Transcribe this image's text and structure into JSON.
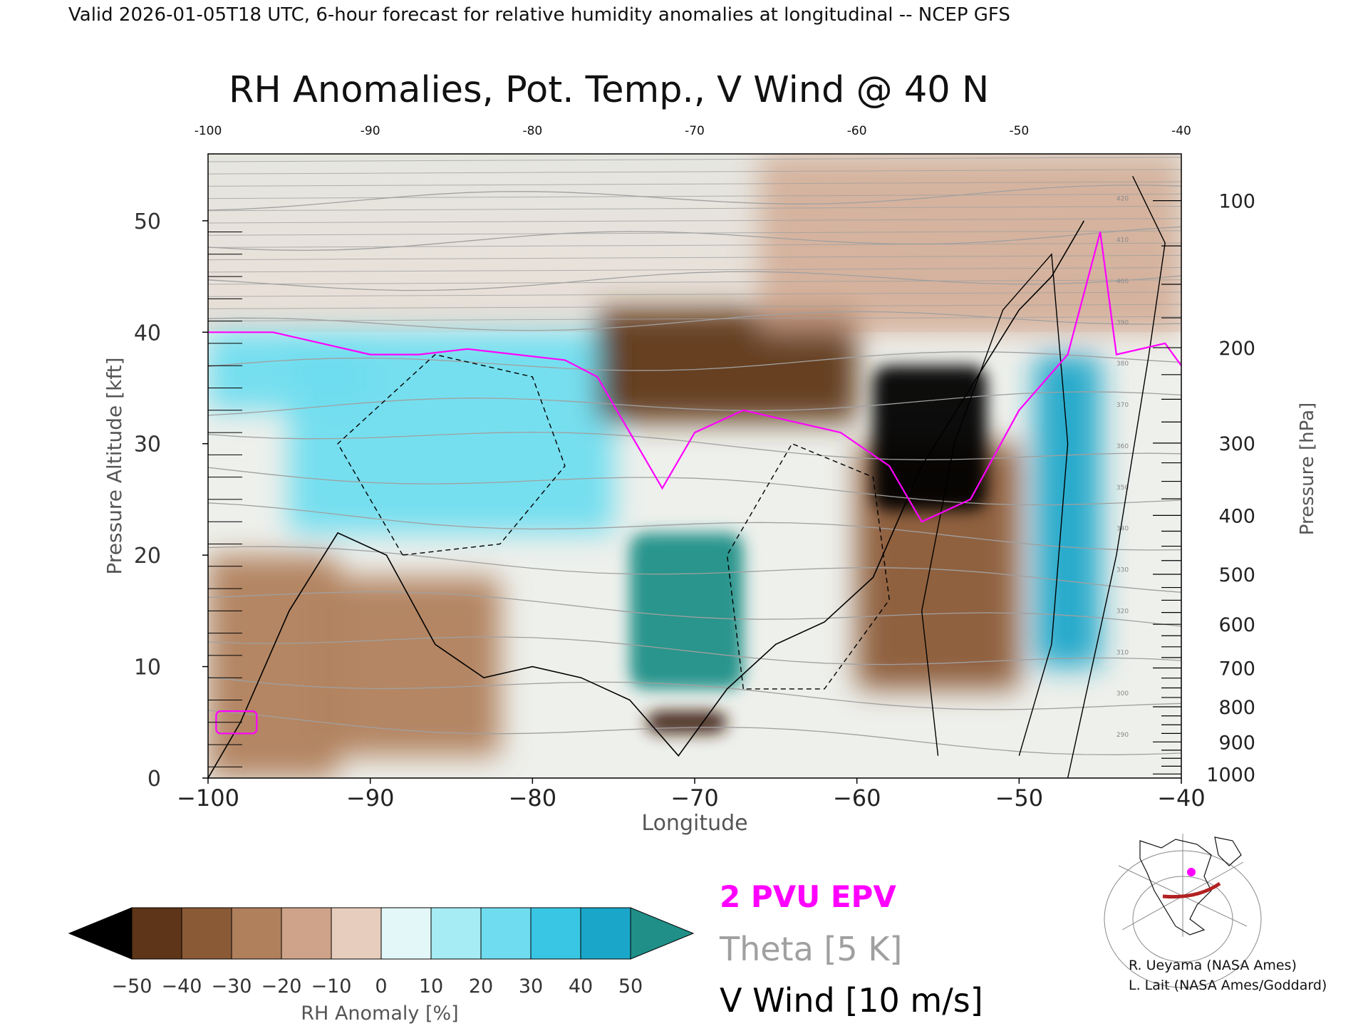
{
  "header": {
    "valid_line": "Valid 2026-01-05T18 UTC, 6-hour forecast for relative humidity anomalies at longitudinal -- NCEP GFS",
    "title": "RH Anomalies, Pot. Temp., V Wind @ 40 N"
  },
  "axes": {
    "x_label": "Longitude",
    "y_left_label": "Pressure Altitude [kft]",
    "y_right_label": "Pressure [hPa]",
    "x_ticks_bottom": [
      "−100",
      "−90",
      "−80",
      "−70",
      "−60",
      "−50",
      "−40"
    ],
    "x_ticks_top": [
      "-100",
      "-90",
      "-80",
      "-70",
      "-60",
      "-50",
      "-40"
    ],
    "y_left_ticks": [
      "0",
      "10",
      "20",
      "30",
      "40",
      "50"
    ],
    "y_right_ticks": [
      "100",
      "200",
      "300",
      "400",
      "500",
      "600",
      "700",
      "800",
      "900",
      "1000"
    ]
  },
  "colorbar": {
    "label": "RH Anomaly [%]",
    "ticks": [
      "−50",
      "−40",
      "−30",
      "−20",
      "−10",
      "0",
      "10",
      "20",
      "30",
      "40",
      "50"
    ],
    "colors": [
      "#3b1f0d",
      "#5e3518",
      "#8a5a36",
      "#b07f5c",
      "#cfa389",
      "#e7cdbd",
      "#e3f7f9",
      "#a5ecf5",
      "#6fddef",
      "#38c6e4",
      "#1aa6c9",
      "#0f86a8"
    ],
    "low_extend_color": "#000000",
    "high_extend_color": "#1f8f88"
  },
  "legend": {
    "epv": "2 PVU EPV",
    "theta": "Theta [5 K]",
    "vwind": "V Wind [10 m/s]",
    "epv_color": "#ff00ff",
    "theta_color": "#a0a0a0",
    "vwind_color": "#000000"
  },
  "credits": {
    "line1": "R. Ueyama (NASA Ames)",
    "line2": "L. Lait (NASA Ames/Goddard)"
  },
  "chart_data": {
    "type": "heatmap",
    "title": "RH Anomalies, Pot. Temp., V Wind @ 40 N",
    "xlabel": "Longitude",
    "ylabel": "Pressure Altitude [kft]",
    "xlim": [
      -100,
      -40
    ],
    "ylim": [
      0,
      56
    ],
    "rh_anomaly_regions": [
      {
        "lon": [
          -100,
          -90
        ],
        "alt": [
          33,
          40
        ],
        "rh": 25
      },
      {
        "lon": [
          -95,
          -75
        ],
        "alt": [
          22,
          40
        ],
        "rh": 20
      },
      {
        "lon": [
          -100,
          -92
        ],
        "alt": [
          0,
          20
        ],
        "rh": -15
      },
      {
        "lon": [
          -93,
          -82
        ],
        "alt": [
          2,
          18
        ],
        "rh": -20
      },
      {
        "lon": [
          -76,
          -60
        ],
        "alt": [
          32,
          42
        ],
        "rh": -35
      },
      {
        "lon": [
          -74,
          -67
        ],
        "alt": [
          8,
          22
        ],
        "rh": 50
      },
      {
        "lon": [
          -59,
          -52
        ],
        "alt": [
          24,
          37
        ],
        "rh": -60
      },
      {
        "lon": [
          -60,
          -50
        ],
        "alt": [
          8,
          30
        ],
        "rh": -30
      },
      {
        "lon": [
          -73,
          -68
        ],
        "alt": [
          4,
          6
        ],
        "rh": -45
      },
      {
        "lon": [
          -49,
          -45
        ],
        "alt": [
          10,
          38
        ],
        "rh": 40
      },
      {
        "lon": [
          -66,
          -40
        ],
        "alt": [
          40,
          56
        ],
        "rh": -5
      }
    ],
    "theta_contours_K": [
      290,
      300,
      310,
      320,
      330,
      340,
      350,
      360,
      370,
      380,
      390,
      400,
      410,
      420
    ],
    "epv_2pvu_line": {
      "lon": [
        -100,
        -96,
        -93,
        -90,
        -87,
        -84,
        -81,
        -78,
        -76,
        -74,
        -72,
        -70,
        -67,
        -64,
        -61,
        -58,
        -56,
        -53,
        -50,
        -47,
        -45,
        -44,
        -41,
        -40
      ],
      "alt": [
        40,
        40,
        39,
        38,
        38,
        38.5,
        38,
        37.5,
        36,
        31,
        26,
        31,
        33,
        32,
        31,
        28,
        23,
        25,
        33,
        38,
        49,
        38,
        39,
        37
      ]
    },
    "vwind_zero_line": {
      "lon": [
        -100,
        -98,
        -95,
        -92,
        -89,
        -86,
        -83,
        -80,
        -77,
        -74,
        -71,
        -68,
        -65,
        -62,
        -59,
        -56,
        -53,
        -50,
        -48,
        -46
      ],
      "alt": [
        0,
        5,
        15,
        22,
        20,
        12,
        9,
        10,
        9,
        7,
        2,
        8,
        12,
        14,
        18,
        28,
        35,
        42,
        45,
        50
      ]
    }
  }
}
